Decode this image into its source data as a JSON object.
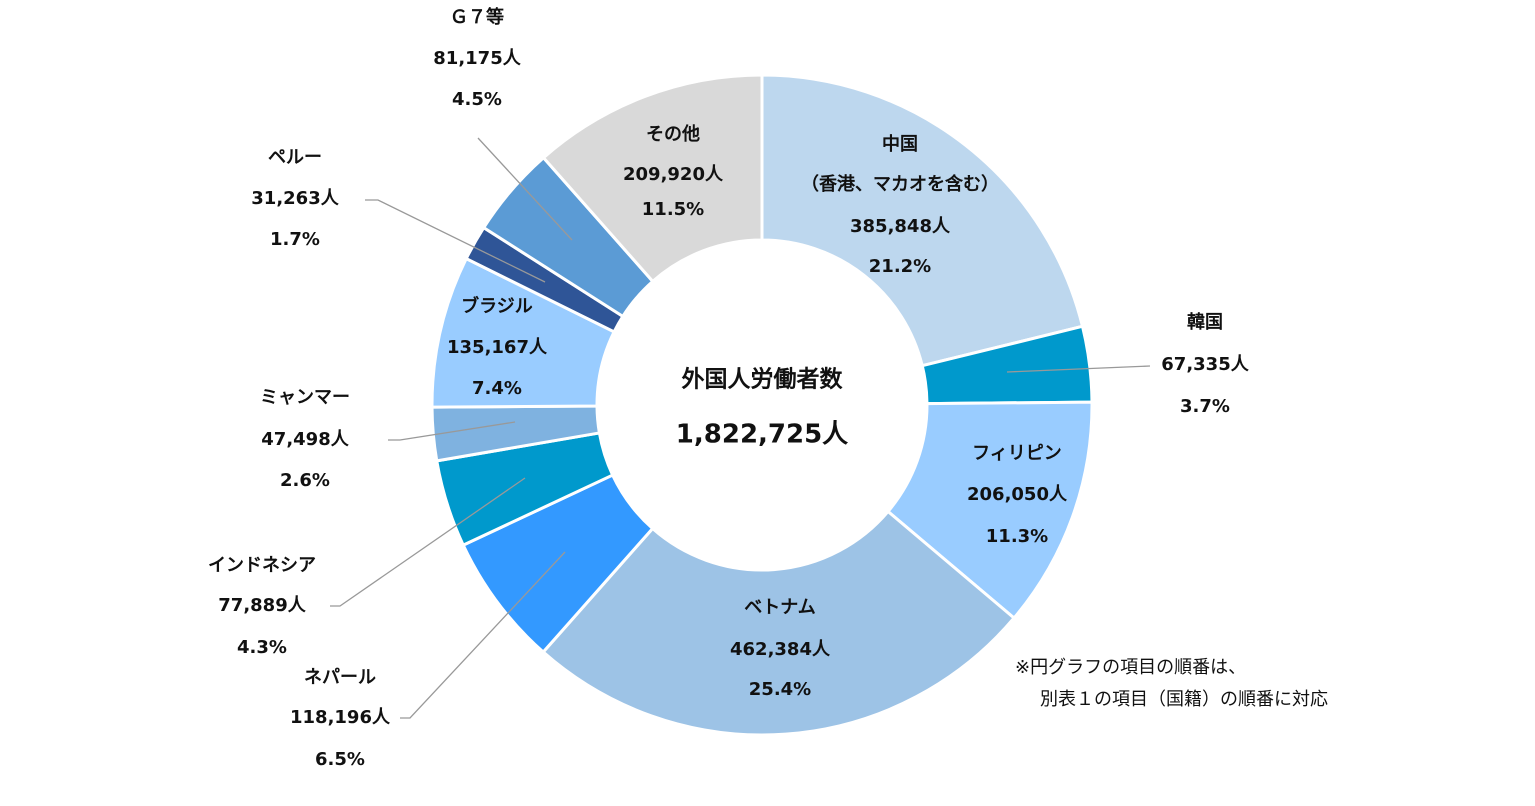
{
  "chart_data": {
    "type": "pie",
    "subtype": "donut",
    "center": {
      "title": "外国人労働者数",
      "total": "1,822,725人"
    },
    "order": "clockwise from top",
    "slices": [
      {
        "name": "中国",
        "sub": "（香港、マカオを含む）",
        "count": "385,848人",
        "pct": "21.2%",
        "value": 385848,
        "color": "#BDD7EE"
      },
      {
        "name": "韓国",
        "count": "67,335人",
        "pct": "3.7%",
        "value": 67335,
        "color": "#0099CC"
      },
      {
        "name": "フィリピン",
        "count": "206,050人",
        "pct": "11.3%",
        "value": 206050,
        "color": "#99CCFF"
      },
      {
        "name": "ベトナム",
        "count": "462,384人",
        "pct": "25.4%",
        "value": 462384,
        "color": "#9DC3E6"
      },
      {
        "name": "ネパール",
        "count": "118,196人",
        "pct": "6.5%",
        "value": 118196,
        "color": "#3399FF"
      },
      {
        "name": "インドネシア",
        "count": "77,889人",
        "pct": "4.3%",
        "value": 77889,
        "color": "#0099CC"
      },
      {
        "name": "ミャンマー",
        "count": "47,498人",
        "pct": "2.6%",
        "value": 47498,
        "color": "#7FB2E0"
      },
      {
        "name": "ブラジル",
        "count": "135,167人",
        "pct": "7.4%",
        "value": 135167,
        "color": "#99CCFF"
      },
      {
        "name": "ペルー",
        "count": "31,263人",
        "pct": "1.7%",
        "value": 31263,
        "color": "#2F5597"
      },
      {
        "name": "Ｇ７等",
        "count": "81,175人",
        "pct": "4.5%",
        "value": 81175,
        "color": "#5B9BD5"
      },
      {
        "name": "その他",
        "count": "209,920人",
        "pct": "11.5%",
        "value": 209920,
        "color": "#D9D9D9"
      }
    ],
    "note": [
      "※円グラフの項目の順番は、",
      "別表１の項目（国籍）の順番に対応"
    ]
  }
}
